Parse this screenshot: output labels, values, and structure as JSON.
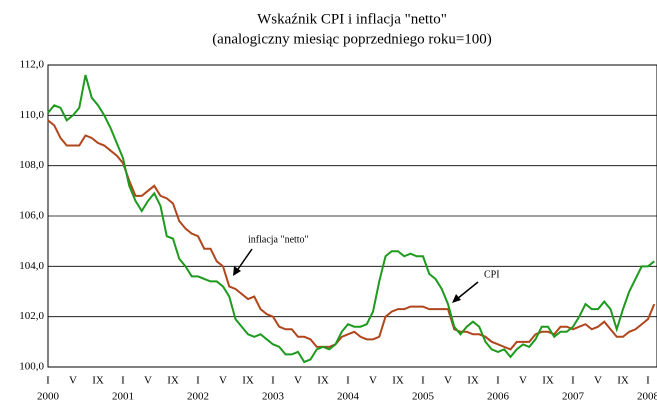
{
  "chart_data": {
    "type": "line",
    "title": "Wskaźnik CPI i inflacja \"netto\"",
    "subtitle": "(analogiczny miesiąc poprzedniego roku=100)",
    "categories": [
      "I",
      null,
      null,
      null,
      "V",
      null,
      null,
      null,
      "IX",
      null,
      null,
      null,
      "I",
      null,
      null,
      null,
      "V",
      null,
      null,
      null,
      "IX",
      null,
      null,
      null,
      "I",
      null,
      null,
      null,
      "V",
      null,
      null,
      null,
      "IX",
      null,
      null,
      null,
      "I",
      null,
      null,
      null,
      "V",
      null,
      null,
      null,
      "IX",
      null,
      null,
      null,
      "I",
      null,
      null,
      null,
      "V",
      null,
      null,
      null,
      "IX",
      null,
      null,
      null,
      "I",
      null,
      null,
      null,
      "V",
      null,
      null,
      null,
      "IX",
      null,
      null,
      null,
      "I",
      null,
      null,
      null,
      "V",
      null,
      null,
      null,
      "IX",
      null,
      null,
      null,
      "I",
      null,
      null,
      null,
      "V",
      null,
      null,
      null,
      "IX",
      null,
      null,
      null,
      "I",
      null
    ],
    "year_labels": [
      "2000",
      "2001",
      "2002",
      "2003",
      "2004",
      "2005",
      "2006",
      "2007",
      "2008"
    ],
    "series": [
      {
        "name": "CPI",
        "color": "#1e9a1e",
        "values": [
          110.1,
          110.4,
          110.3,
          109.8,
          110.0,
          110.3,
          111.6,
          110.7,
          110.4,
          110.0,
          109.5,
          108.9,
          108.3,
          107.2,
          106.6,
          106.2,
          106.6,
          106.9,
          106.4,
          105.2,
          105.1,
          104.3,
          104.0,
          103.6,
          103.6,
          103.5,
          103.4,
          103.4,
          103.2,
          102.8,
          101.9,
          101.6,
          101.3,
          101.2,
          101.3,
          101.1,
          100.9,
          100.8,
          100.5,
          100.5,
          100.6,
          100.2,
          100.3,
          100.7,
          100.8,
          100.7,
          100.9,
          101.4,
          101.7,
          101.6,
          101.6,
          101.7,
          102.2,
          103.4,
          104.4,
          104.6,
          104.6,
          104.4,
          104.5,
          104.4,
          104.4,
          103.7,
          103.5,
          103.1,
          102.5,
          101.6,
          101.3,
          101.6,
          101.8,
          101.6,
          101.0,
          100.7,
          100.6,
          100.7,
          100.4,
          100.7,
          100.9,
          100.8,
          101.1,
          101.6,
          101.6,
          101.2,
          101.4,
          101.4,
          101.6,
          102.0,
          102.5,
          102.3,
          102.3,
          102.6,
          102.3,
          101.5,
          102.3,
          103.0,
          103.5,
          104.0,
          104.0,
          104.2
        ]
      },
      {
        "name": "inflacja \"netto\"",
        "color": "#b0461c",
        "values": [
          109.8,
          109.6,
          109.1,
          108.8,
          108.8,
          108.8,
          109.2,
          109.1,
          108.9,
          108.8,
          108.6,
          108.4,
          108.1,
          107.4,
          106.8,
          106.8,
          107.0,
          107.2,
          106.8,
          106.7,
          106.5,
          105.8,
          105.5,
          105.3,
          105.2,
          104.7,
          104.7,
          104.2,
          104.0,
          103.2,
          103.1,
          102.9,
          102.7,
          102.8,
          102.3,
          102.1,
          102.0,
          101.6,
          101.5,
          101.5,
          101.2,
          101.2,
          101.1,
          100.8,
          100.8,
          100.8,
          100.9,
          101.2,
          101.3,
          101.4,
          101.2,
          101.1,
          101.1,
          101.2,
          102.0,
          102.2,
          102.3,
          102.3,
          102.4,
          102.4,
          102.4,
          102.3,
          102.3,
          102.3,
          102.3,
          101.5,
          101.4,
          101.4,
          101.3,
          101.3,
          101.2,
          101.0,
          100.9,
          100.8,
          100.7,
          101.0,
          101.0,
          101.0,
          101.3,
          101.4,
          101.4,
          101.3,
          101.6,
          101.6,
          101.5,
          101.6,
          101.7,
          101.5,
          101.6,
          101.8,
          101.5,
          101.2,
          101.2,
          101.4,
          101.5,
          101.7,
          101.9,
          102.5
        ]
      }
    ],
    "ylim": [
      100,
      112
    ],
    "yticks": [
      {
        "value": 100,
        "label": "100,0"
      },
      {
        "value": 102,
        "label": "102,0"
      },
      {
        "value": 104,
        "label": "104,0"
      },
      {
        "value": 106,
        "label": "106,0"
      },
      {
        "value": 108,
        "label": "108,0"
      },
      {
        "value": 110,
        "label": "110,0"
      },
      {
        "value": 112,
        "label": "112,0"
      }
    ],
    "grid": true
  }
}
